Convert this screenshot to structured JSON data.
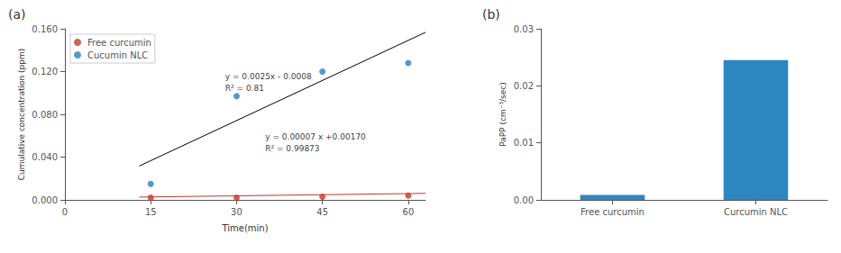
{
  "chart_data": [
    {
      "type": "scatter",
      "title": "(a)",
      "xlabel": "Time(min)",
      "ylabel": "Cumulative concentration (ppm)",
      "series": [
        {
          "name": "Free curcumin",
          "type": "scatter",
          "color": "#c0392b",
          "x": [
            15,
            30,
            45,
            60
          ],
          "values": [
            0.002,
            0.002,
            0.003,
            0.004
          ]
        },
        {
          "name": "Cucumin NLC",
          "type": "scatter",
          "color": "#2980b9",
          "x": [
            15,
            30,
            45,
            60
          ],
          "values": [
            0.015,
            0.097,
            0.12,
            0.128
          ]
        },
        {
          "type": "line",
          "color": "black",
          "x": [
            13,
            63
          ],
          "values": [
            0.0317,
            0.1567
          ]
        },
        {
          "type": "line",
          "color": "#c0392b",
          "x": [
            13,
            63
          ],
          "values": [
            0.00261,
            0.00611
          ]
        }
      ],
      "annotations": [
        {
          "text": "y = 0.0025x - 0.0008",
          "x": 28,
          "y": 0.112
        },
        {
          "text": "R² = 0.81",
          "x": 28,
          "y": 0.101
        },
        {
          "text": "y = 0.00007 x +0.00170",
          "x": 35,
          "y": 0.055
        },
        {
          "text": "R² = 0.99873",
          "x": 35,
          "y": 0.044
        }
      ],
      "xlim": [
        0,
        63
      ],
      "xticks": [
        0,
        15,
        30,
        45,
        60
      ],
      "ylim": [
        0,
        0.16
      ],
      "yticks": [
        {
          "value": 0,
          "label": "0.000"
        },
        {
          "value": 0.04,
          "label": "0.040"
        },
        {
          "value": 0.08,
          "label": "0.080"
        },
        {
          "value": 0.12,
          "label": "0.120"
        },
        {
          "value": 0.16,
          "label": "0.160"
        }
      ],
      "legend": "upper left",
      "grid": false
    },
    {
      "type": "bar",
      "title": "(b)",
      "ylabel": "PaPP (cm⁻³/sec)",
      "categories": [
        "Free curcumin",
        "Curcumin NLC"
      ],
      "values": [
        0.00085,
        0.0245
      ],
      "color": "#2e86c1",
      "ylim": [
        0,
        0.03
      ],
      "yticks": [
        {
          "value": 0,
          "label": "0.00"
        },
        {
          "value": 0.01,
          "label": "0.01"
        },
        {
          "value": 0.02,
          "label": "0.02"
        },
        {
          "value": 0.03,
          "label": "0.03"
        }
      ],
      "grid": false
    }
  ]
}
